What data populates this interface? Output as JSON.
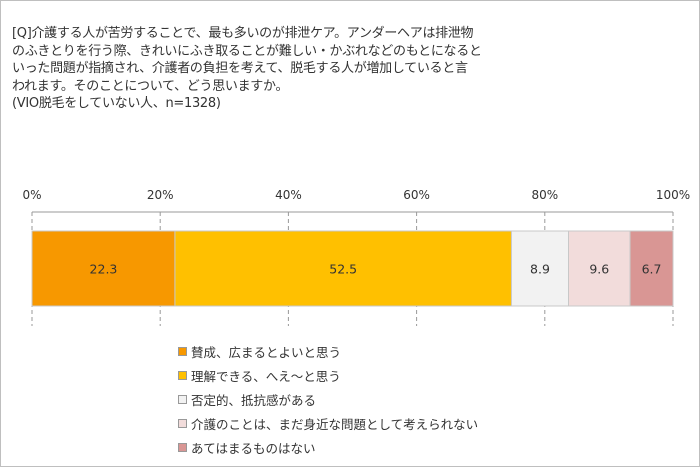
{
  "question": "[Q]介護する人が苦労することで、最も多いのが排泄ケア。アンダーヘアは排泄物\nのふきとりを行う際、きれいにふき取ることが難しい・かぶれなどのもとになると\nいった問題が指摘され、介護者の負担を考えて、脱毛する人が増加していると言\nわれます。そのことについて、どう思いますか。\n(VIO脱毛をしていない人、n=1328)",
  "chart_data": {
    "type": "bar",
    "orientation": "horizontal-stacked-100",
    "xlim": [
      0,
      100
    ],
    "ticks": [
      "0%",
      "20%",
      "40%",
      "60%",
      "80%",
      "100%"
    ],
    "grid": true,
    "legend_position": "bottom",
    "series": [
      {
        "name": "賛成、広まるとよいと思う",
        "value": 22.3,
        "label": "22.3",
        "color": "#f79800"
      },
      {
        "name": "理解できる、へえ～と思う",
        "value": 52.5,
        "label": "52.5",
        "color": "#ffc000"
      },
      {
        "name": "否定的、抵抗感がある",
        "value": 8.9,
        "label": "8.9",
        "color": "#f2f2f2"
      },
      {
        "name": "介護のことは、まだ身近な問題として考えられない",
        "value": 9.6,
        "label": "9.6",
        "color": "#f2dcdb"
      },
      {
        "name": "あてはまるものはない",
        "value": 6.7,
        "label": "6.7",
        "color": "#d99694"
      }
    ]
  }
}
